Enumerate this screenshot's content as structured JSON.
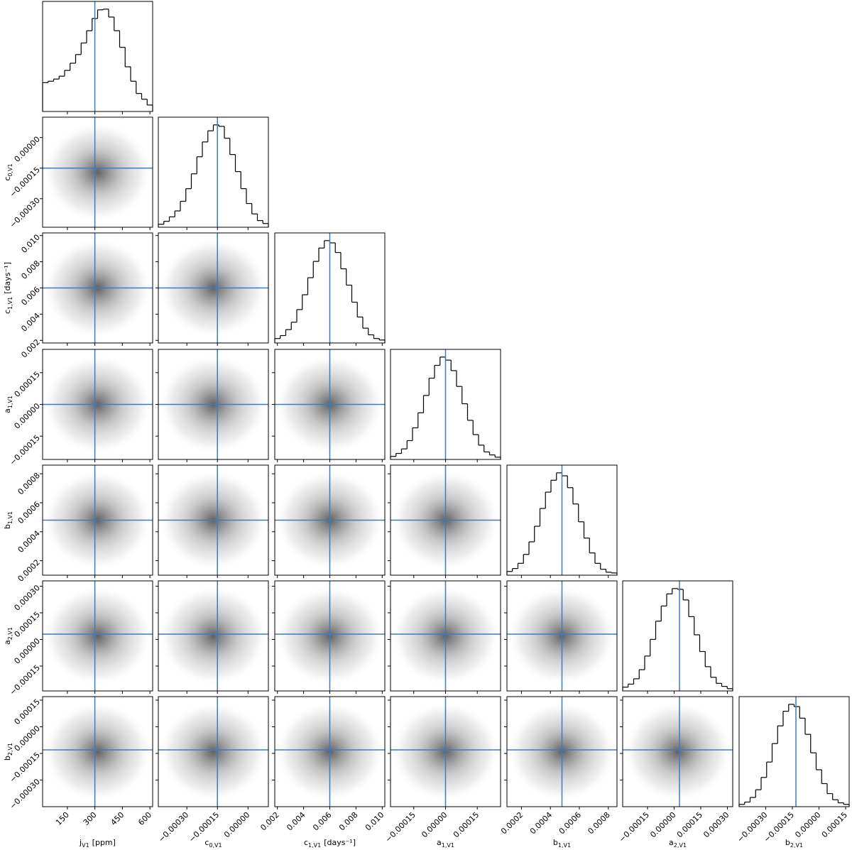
{
  "chart_data": {
    "type": "corner",
    "truth_color": "#3b7dbf",
    "parameters": [
      {
        "symbol": "j",
        "subscript": "V1",
        "unit": "[ppm]",
        "lim": [
          15,
          615
        ],
        "ticks": [
          150,
          300,
          450,
          600
        ],
        "truth": 300,
        "bins": [
          15,
          45,
          75,
          105,
          135,
          165,
          195,
          225,
          255,
          285,
          315,
          345,
          375,
          405,
          435,
          465,
          495,
          525,
          555,
          585,
          615
        ],
        "counts": [
          40,
          42,
          45,
          49,
          57,
          67,
          79,
          95,
          112,
          129,
          141,
          142,
          131,
          112,
          89,
          62,
          42,
          25,
          17,
          9
        ]
      },
      {
        "symbol": "c",
        "subscript": "0,V1",
        "lim": [
          -0.00044,
          0.0001
        ],
        "ticks": [
          {
            "value": -0.0003,
            "label": "−0.00030"
          },
          {
            "value": -0.00015,
            "label": "−0.00015"
          },
          {
            "value": 0,
            "label": "0.00000"
          }
        ],
        "truth": -0.00015,
        "bins": [
          -0.00044,
          -0.000413,
          -0.000386,
          -0.000359,
          -0.000332,
          -0.000305,
          -0.000278,
          -0.000251,
          -0.000224,
          -0.000197,
          -0.00017,
          -0.000143,
          -0.000116,
          -8.9e-05,
          -6.2e-05,
          -3.5e-05,
          -8e-06,
          1.9e-05,
          4.6e-05,
          7.3e-05,
          0.0001
        ],
        "counts": [
          4,
          8,
          14,
          22,
          35,
          52,
          72,
          95,
          115,
          130,
          138,
          136,
          120,
          98,
          75,
          52,
          32,
          18,
          9,
          5
        ]
      },
      {
        "symbol": "c",
        "subscript": "1,V1",
        "unit": "[days⁻¹]",
        "lim": [
          0.0018,
          0.0102
        ],
        "ticks": [
          0.002,
          0.004,
          0.006,
          0.008,
          {
            "value": 0.01,
            "label": "0.010"
          }
        ],
        "truth": 0.006,
        "bins": [
          0.0018,
          0.00222,
          0.00264,
          0.00306,
          0.00348,
          0.0039,
          0.00432,
          0.00474,
          0.00516,
          0.00558,
          0.006,
          0.00642,
          0.00684,
          0.00726,
          0.00768,
          0.0081,
          0.00852,
          0.00894,
          0.00936,
          0.00978,
          0.0102
        ],
        "counts": [
          6,
          10,
          18,
          28,
          45,
          65,
          88,
          110,
          128,
          138,
          135,
          122,
          100,
          78,
          55,
          35,
          20,
          11,
          6,
          4
        ]
      },
      {
        "symbol": "a",
        "subscript": "1,V1",
        "lim": [
          -0.00026,
          0.00026
        ],
        "ticks": [
          {
            "value": -0.00015,
            "label": "−0.00015"
          },
          {
            "value": 0,
            "label": "0.00000"
          },
          {
            "value": 0.00015,
            "label": "0.00015"
          }
        ],
        "truth": 0,
        "bins": [
          -0.00026,
          -0.000234,
          -0.000208,
          -0.000182,
          -0.000156,
          -0.00013,
          -0.000104,
          -7.8e-05,
          -5.2e-05,
          -2.6e-05,
          0,
          2.6e-05,
          5.2e-05,
          7.8e-05,
          0.000104,
          0.00013,
          0.000156,
          0.000182,
          0.000208,
          0.000234,
          0.00026
        ],
        "counts": [
          4,
          8,
          14,
          25,
          42,
          62,
          85,
          108,
          125,
          136,
          132,
          118,
          97,
          74,
          52,
          33,
          19,
          10,
          6,
          3
        ]
      },
      {
        "symbol": "b",
        "subscript": "1,V1",
        "lim": [
          0.0001,
          0.00086
        ],
        "ticks": [
          0.0002,
          0.0004,
          0.0006,
          0.0008
        ],
        "truth": 0.00048,
        "bins": [
          0.0001,
          0.000138,
          0.000176,
          0.000214,
          0.000252,
          0.00029,
          0.000328,
          0.000366,
          0.000404,
          0.000442,
          0.00048,
          0.000518,
          0.000556,
          0.000594,
          0.000632,
          0.00067,
          0.000708,
          0.000746,
          0.000784,
          0.000822,
          0.00086
        ],
        "counts": [
          5,
          9,
          16,
          28,
          45,
          66,
          90,
          112,
          128,
          138,
          134,
          118,
          96,
          72,
          50,
          30,
          16,
          8,
          4,
          3
        ]
      },
      {
        "symbol": "a",
        "subscript": "2,V1",
        "lim": [
          -0.00029,
          0.00033
        ],
        "ticks": [
          {
            "value": -0.00015,
            "label": "−0.00015"
          },
          {
            "value": 0,
            "label": "0.00000"
          },
          {
            "value": 0.00015,
            "label": "0.00015"
          },
          {
            "value": 0.0003,
            "label": "0.00030"
          }
        ],
        "truth": 3e-05,
        "bins": [
          -0.00029,
          -0.000259,
          -0.000228,
          -0.000197,
          -0.000166,
          -0.000135,
          -0.000104,
          -7.3e-05,
          -4.2e-05,
          -1.1e-05,
          2e-05,
          5.1e-05,
          8.2e-05,
          0.000113,
          0.000144,
          0.000175,
          0.000206,
          0.000237,
          0.000268,
          0.000299,
          0.00033
        ],
        "counts": [
          5,
          9,
          16,
          28,
          46,
          68,
          92,
          112,
          128,
          135,
          134,
          120,
          98,
          74,
          52,
          32,
          18,
          10,
          6,
          3
        ]
      },
      {
        "symbol": "b",
        "subscript": "2,V1",
        "lim": [
          -0.00045,
          0.00017
        ],
        "ticks": [
          {
            "value": -0.0003,
            "label": "−0.00030"
          },
          {
            "value": -0.00015,
            "label": "−0.00015"
          },
          {
            "value": 0,
            "label": "0.00000"
          },
          {
            "value": 0.00015,
            "label": "0.00015"
          }
        ],
        "truth": -0.00013,
        "bins": [
          -0.00045,
          -0.000419,
          -0.000388,
          -0.000357,
          -0.000326,
          -0.000295,
          -0.000264,
          -0.000233,
          -0.000202,
          -0.000171,
          -0.00014,
          -0.000109,
          -7.8e-05,
          -4.7e-05,
          -1.6e-05,
          1.5e-05,
          4.6e-05,
          7.7e-05,
          0.000108,
          0.000139,
          0.00017
        ],
        "counts": [
          3,
          6,
          12,
          22,
          38,
          58,
          82,
          105,
          124,
          133,
          130,
          115,
          94,
          70,
          48,
          30,
          17,
          9,
          5,
          3
        ]
      }
    ]
  }
}
